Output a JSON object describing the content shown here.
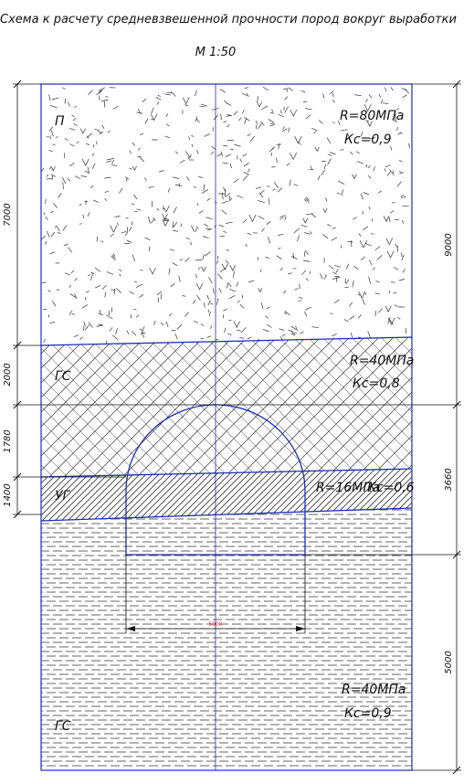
{
  "title": "Схема к расчету средневзвешенной прочности пород вокруг выработки",
  "scale": "М 1:50",
  "layers": [
    {
      "code": "П",
      "strength": "R=80МПа",
      "kc": "Кс=0,9"
    },
    {
      "code": "ГС",
      "strength": "R=40МПа",
      "kc": "Кс=0,8"
    },
    {
      "code": "УГ",
      "strength": "R=16МПа",
      "kc": "Кс=0,6"
    },
    {
      "code": "ГС",
      "strength": "R=40МПа",
      "kc": "Кс=0,9"
    }
  ],
  "dims_left": [
    "7000",
    "2000",
    "1780",
    "1400"
  ],
  "dims_right": [
    "9000",
    "3660",
    "5000"
  ],
  "width_dim": "5000",
  "colors": {
    "outline": "#1a2fb0",
    "line": "#111111",
    "hatch": "#333333",
    "accent": "#dd3333"
  }
}
